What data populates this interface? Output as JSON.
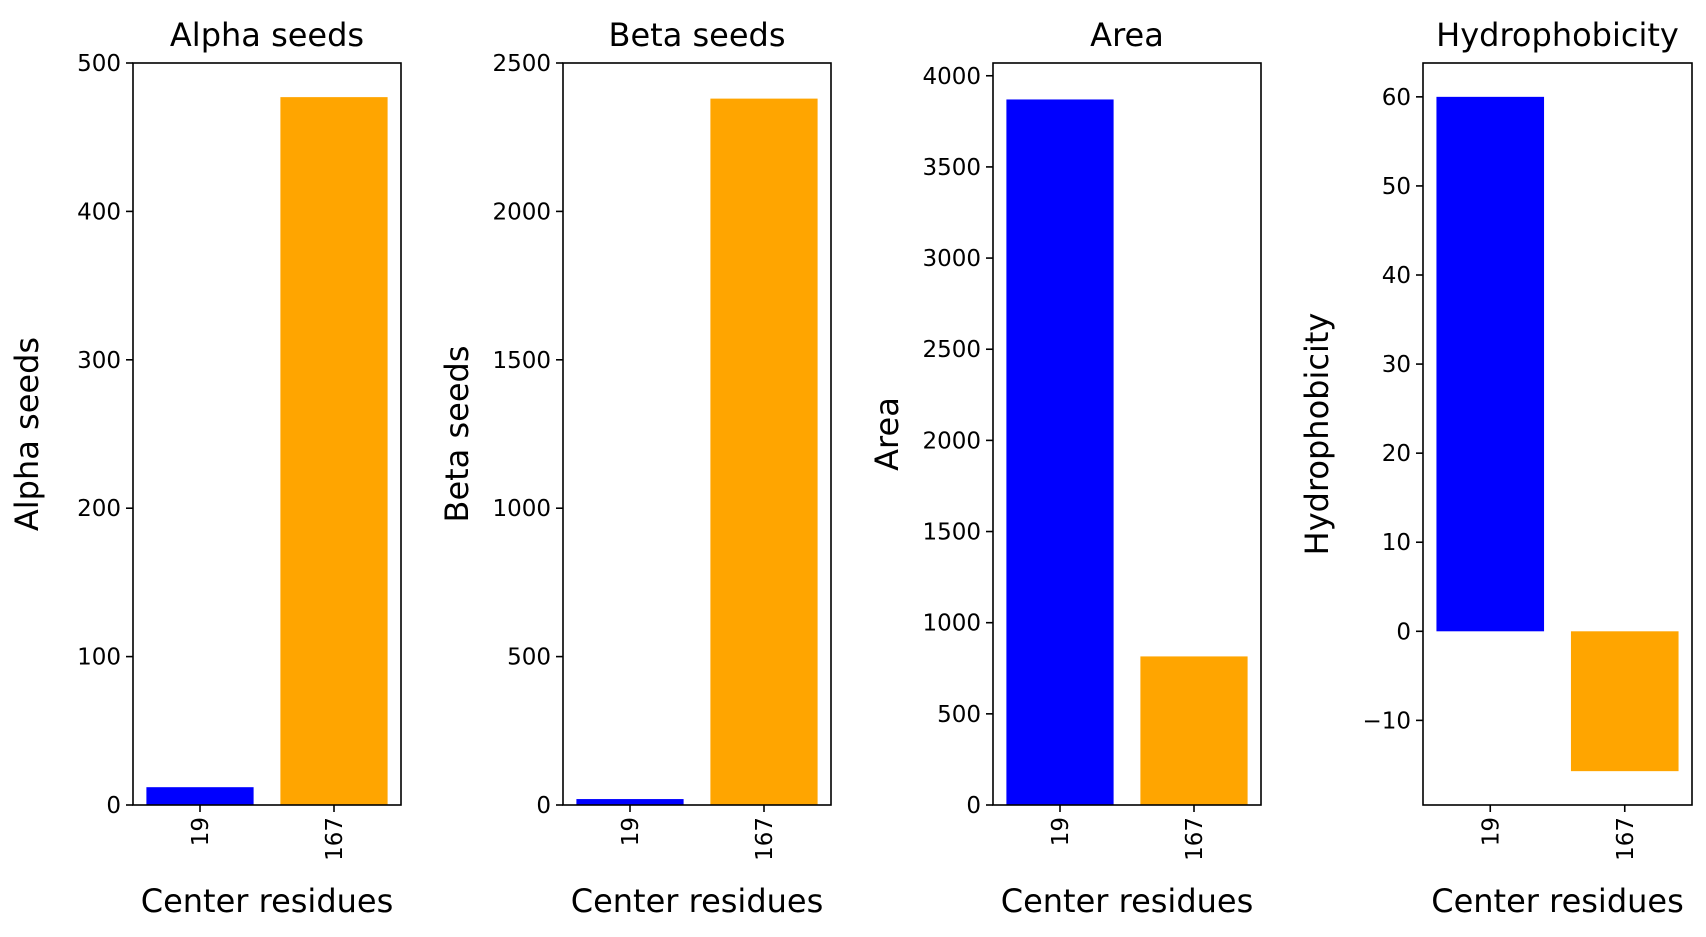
{
  "chart_data": [
    {
      "type": "bar",
      "title": "Alpha seeds",
      "xlabel": "Center residues",
      "ylabel": "Alpha seeds",
      "categories": [
        "19",
        "167"
      ],
      "values": [
        12,
        477
      ],
      "bar_colors": [
        "#0000ff",
        "#ffa500"
      ],
      "ylim": [
        0,
        500
      ],
      "yticks": [
        0,
        100,
        200,
        300,
        400,
        500
      ],
      "ytick_labels": [
        "0",
        "100",
        "200",
        "300",
        "400",
        "500"
      ],
      "grid": false
    },
    {
      "type": "bar",
      "title": "Beta seeds",
      "xlabel": "Center residues",
      "ylabel": "Beta seeds",
      "categories": [
        "19",
        "167"
      ],
      "values": [
        20,
        2380
      ],
      "bar_colors": [
        "#0000ff",
        "#ffa500"
      ],
      "ylim": [
        0,
        2500
      ],
      "yticks": [
        0,
        500,
        1000,
        1500,
        2000,
        2500
      ],
      "ytick_labels": [
        "0",
        "500",
        "1000",
        "1500",
        "2000",
        "2500"
      ],
      "grid": false
    },
    {
      "type": "bar",
      "title": "Area",
      "xlabel": "Center residues",
      "ylabel": "Area",
      "categories": [
        "19",
        "167"
      ],
      "values": [
        3870,
        815
      ],
      "bar_colors": [
        "#0000ff",
        "#ffa500"
      ],
      "ylim": [
        0,
        4070
      ],
      "yticks": [
        0,
        500,
        1000,
        1500,
        2000,
        2500,
        3000,
        3500,
        4000
      ],
      "ytick_labels": [
        "0",
        "500",
        "1000",
        "1500",
        "2000",
        "2500",
        "3000",
        "3500",
        "4000"
      ],
      "grid": false
    },
    {
      "type": "bar",
      "title": "Hydrophobicity",
      "xlabel": "Center residues",
      "ylabel": "Hydrophobicity",
      "categories": [
        "19",
        "167"
      ],
      "values": [
        60,
        -15.7
      ],
      "bar_colors": [
        "#0000ff",
        "#ffa500"
      ],
      "ylim": [
        -19.5,
        63.8
      ],
      "yticks": [
        -10,
        0,
        10,
        20,
        30,
        40,
        50,
        60
      ],
      "ytick_labels": [
        "−10",
        "0",
        "10",
        "20",
        "30",
        "40",
        "50",
        "60"
      ],
      "grid": false
    }
  ]
}
